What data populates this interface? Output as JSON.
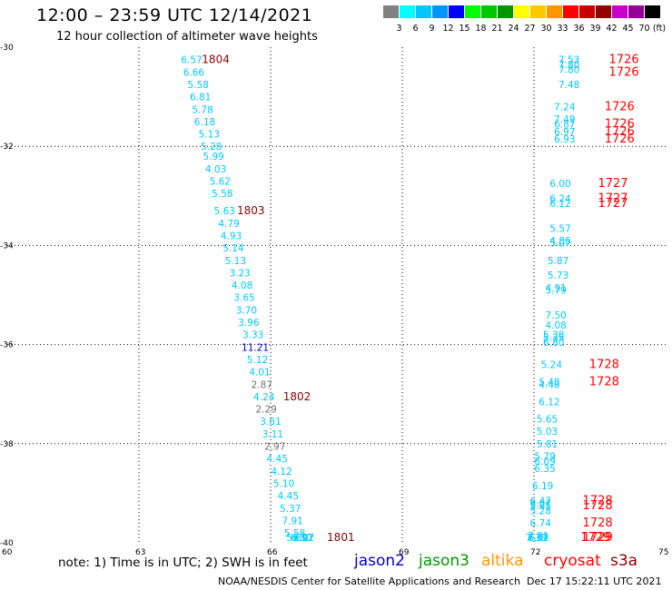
{
  "header": {
    "title": "12:00 – 23:59 UTC 12/14/2021",
    "subtitle": "12 hour collection of altimeter wave heights"
  },
  "legend": {
    "bins": [
      {
        "label": "",
        "color": "#808080"
      },
      {
        "label": "3",
        "color": "#00ffff"
      },
      {
        "label": "6",
        "color": "#00c8ff"
      },
      {
        "label": "9",
        "color": "#0096ff"
      },
      {
        "label": "12",
        "color": "#0000ff"
      },
      {
        "label": "15",
        "color": "#00ff00"
      },
      {
        "label": "18",
        "color": "#00c800"
      },
      {
        "label": "21",
        "color": "#009600"
      },
      {
        "label": "24",
        "color": "#ffff00"
      },
      {
        "label": "27",
        "color": "#ffc800"
      },
      {
        "label": "30",
        "color": "#ff9600"
      },
      {
        "label": "33",
        "color": "#ff0000"
      },
      {
        "label": "36",
        "color": "#c80000"
      },
      {
        "label": "39",
        "color": "#960000"
      },
      {
        "label": "42",
        "color": "#c800c8"
      },
      {
        "label": "45",
        "color": "#960096"
      },
      {
        "label": "70",
        "color": "#000000"
      }
    ],
    "unit": "(ft)"
  },
  "map": {
    "lon_range": [
      60,
      75
    ],
    "lat_range": [
      -40,
      -30
    ],
    "lon_ticks": [
      "60",
      "63",
      "66",
      "69",
      "72",
      "75"
    ],
    "lat_ticks": [
      "-30",
      "-32",
      "-34",
      "-36",
      "-38",
      "-40"
    ],
    "grid": true,
    "colors": {
      "light_cyan": "#00c8ff",
      "deep_blue": "#0000c8",
      "gray": "#707070",
      "dark_red": "#8b0000",
      "red": "#ff0000"
    }
  },
  "chart_data": {
    "type": "scatter",
    "xlabel": "",
    "ylabel": "",
    "xlim": [
      60,
      75
    ],
    "ylim": [
      -40,
      -30
    ],
    "grid": true,
    "track1": [
      {
        "lon": 64.2,
        "lat": -30.25,
        "v": "6.57",
        "c": "light_cyan"
      },
      {
        "lon": 64.25,
        "lat": -30.5,
        "v": "6.66",
        "c": "light_cyan"
      },
      {
        "lon": 64.35,
        "lat": -30.75,
        "v": "5.58",
        "c": "light_cyan"
      },
      {
        "lon": 64.4,
        "lat": -31.0,
        "v": "6.81",
        "c": "light_cyan"
      },
      {
        "lon": 64.45,
        "lat": -31.25,
        "v": "5.78",
        "c": "light_cyan"
      },
      {
        "lon": 64.5,
        "lat": -31.5,
        "v": "6.18",
        "c": "light_cyan"
      },
      {
        "lon": 64.6,
        "lat": -31.75,
        "v": "5.13",
        "c": "light_cyan"
      },
      {
        "lon": 64.65,
        "lat": -32.0,
        "v": "5.28",
        "c": "light_cyan"
      },
      {
        "lon": 64.7,
        "lat": -32.2,
        "v": "5.99",
        "c": "light_cyan"
      },
      {
        "lon": 64.75,
        "lat": -32.45,
        "v": "4.03",
        "c": "light_cyan"
      },
      {
        "lon": 64.85,
        "lat": -32.7,
        "v": "5.62",
        "c": "light_cyan"
      },
      {
        "lon": 64.9,
        "lat": -32.95,
        "v": "5.58",
        "c": "light_cyan"
      },
      {
        "lon": 64.95,
        "lat": -33.3,
        "v": "5.63",
        "c": "light_cyan"
      },
      {
        "lon": 65.05,
        "lat": -33.55,
        "v": "4.79",
        "c": "light_cyan"
      },
      {
        "lon": 65.1,
        "lat": -33.8,
        "v": "4.93",
        "c": "light_cyan"
      },
      {
        "lon": 65.15,
        "lat": -34.05,
        "v": "5.14",
        "c": "light_cyan"
      },
      {
        "lon": 65.2,
        "lat": -34.3,
        "v": "5.13",
        "c": "light_cyan"
      },
      {
        "lon": 65.3,
        "lat": -34.55,
        "v": "3.23",
        "c": "light_cyan"
      },
      {
        "lon": 65.35,
        "lat": -34.8,
        "v": "4.08",
        "c": "light_cyan"
      },
      {
        "lon": 65.4,
        "lat": -35.05,
        "v": "3.65",
        "c": "light_cyan"
      },
      {
        "lon": 65.45,
        "lat": -35.3,
        "v": "3.70",
        "c": "light_cyan"
      },
      {
        "lon": 65.5,
        "lat": -35.55,
        "v": "3.96",
        "c": "light_cyan"
      },
      {
        "lon": 65.6,
        "lat": -35.8,
        "v": "3.33",
        "c": "light_cyan"
      },
      {
        "lon": 65.65,
        "lat": -36.05,
        "v": "11.21",
        "c": "deep_blue"
      },
      {
        "lon": 65.7,
        "lat": -36.3,
        "v": "5.12",
        "c": "light_cyan"
      },
      {
        "lon": 65.75,
        "lat": -36.55,
        "v": "4.01",
        "c": "light_cyan"
      },
      {
        "lon": 65.8,
        "lat": -36.8,
        "v": "2.87",
        "c": "gray"
      },
      {
        "lon": 65.85,
        "lat": -37.05,
        "v": "4.24",
        "c": "light_cyan"
      },
      {
        "lon": 65.9,
        "lat": -37.3,
        "v": "2.29",
        "c": "gray"
      },
      {
        "lon": 66.0,
        "lat": -37.55,
        "v": "3.61",
        "c": "light_cyan"
      },
      {
        "lon": 66.05,
        "lat": -37.8,
        "v": "3.11",
        "c": "light_cyan"
      },
      {
        "lon": 66.1,
        "lat": -38.05,
        "v": "2.97",
        "c": "gray"
      },
      {
        "lon": 66.15,
        "lat": -38.3,
        "v": "4.45",
        "c": "light_cyan"
      },
      {
        "lon": 66.25,
        "lat": -38.55,
        "v": "4.12",
        "c": "light_cyan"
      },
      {
        "lon": 66.3,
        "lat": -38.8,
        "v": "5.10",
        "c": "light_cyan"
      },
      {
        "lon": 66.4,
        "lat": -39.05,
        "v": "4.45",
        "c": "light_cyan"
      },
      {
        "lon": 66.45,
        "lat": -39.3,
        "v": "5.37",
        "c": "light_cyan"
      },
      {
        "lon": 66.5,
        "lat": -39.55,
        "v": "7.91",
        "c": "light_cyan"
      },
      {
        "lon": 66.55,
        "lat": -39.8,
        "v": "5.58",
        "c": "light_cyan"
      },
      {
        "lon": 66.6,
        "lat": -40.1,
        "v": "5.69",
        "c": "light_cyan"
      },
      {
        "lon": 66.7,
        "lat": -40.35,
        "v": "6.30",
        "c": "light_cyan"
      },
      {
        "lon": 66.75,
        "lat": -40.6,
        "v": "6.07",
        "c": "light_cyan"
      },
      {
        "lon": 66.75,
        "lat": -40.65,
        "v": "7.22",
        "c": "light_cyan"
      }
    ],
    "track1_times": [
      {
        "lon": 64.75,
        "lat": -30.25,
        "t": "1804"
      },
      {
        "lon": 65.55,
        "lat": -33.3,
        "t": "1803"
      },
      {
        "lon": 66.6,
        "lat": -37.05,
        "t": "1802"
      },
      {
        "lon": 67.6,
        "lat": -40.65,
        "t": "1801"
      }
    ],
    "track2": [
      {
        "lon": 72.8,
        "lat": -30.25,
        "v": "7.53",
        "c": "light_cyan"
      },
      {
        "lon": 72.8,
        "lat": -30.35,
        "v": "7.80",
        "c": "light_cyan"
      },
      {
        "lon": 72.8,
        "lat": -30.45,
        "v": "7.80",
        "c": "light_cyan"
      },
      {
        "lon": 72.8,
        "lat": -30.75,
        "v": "7.48",
        "c": "light_cyan"
      },
      {
        "lon": 72.7,
        "lat": -31.2,
        "v": "7.24",
        "c": "light_cyan"
      },
      {
        "lon": 72.7,
        "lat": -31.45,
        "v": "7.49",
        "c": "light_cyan"
      },
      {
        "lon": 72.7,
        "lat": -31.55,
        "v": "6.87",
        "c": "light_cyan"
      },
      {
        "lon": 72.7,
        "lat": -31.7,
        "v": "6.97",
        "c": "light_cyan"
      },
      {
        "lon": 72.7,
        "lat": -31.85,
        "v": "6.93",
        "c": "light_cyan"
      },
      {
        "lon": 72.6,
        "lat": -32.75,
        "v": "6.00",
        "c": "light_cyan"
      },
      {
        "lon": 72.6,
        "lat": -33.05,
        "v": "6.24",
        "c": "light_cyan"
      },
      {
        "lon": 72.6,
        "lat": -33.15,
        "v": "6.12",
        "c": "light_cyan"
      },
      {
        "lon": 72.6,
        "lat": -33.65,
        "v": "5.57",
        "c": "light_cyan"
      },
      {
        "lon": 72.6,
        "lat": -33.9,
        "v": "4.86",
        "c": "light_cyan"
      },
      {
        "lon": 72.6,
        "lat": -33.95,
        "v": "5.07",
        "c": "light_cyan"
      },
      {
        "lon": 72.55,
        "lat": -34.3,
        "v": "5.87",
        "c": "light_cyan"
      },
      {
        "lon": 72.55,
        "lat": -34.6,
        "v": "5.73",
        "c": "light_cyan"
      },
      {
        "lon": 72.5,
        "lat": -34.85,
        "v": "4.91",
        "c": "light_cyan"
      },
      {
        "lon": 72.5,
        "lat": -34.9,
        "v": "5.79",
        "c": "light_cyan"
      },
      {
        "lon": 72.5,
        "lat": -35.4,
        "v": "7.50",
        "c": "light_cyan"
      },
      {
        "lon": 72.5,
        "lat": -35.6,
        "v": "4.08",
        "c": "light_cyan"
      },
      {
        "lon": 72.45,
        "lat": -35.8,
        "v": "5.38",
        "c": "light_cyan"
      },
      {
        "lon": 72.45,
        "lat": -35.85,
        "v": "5.35",
        "c": "light_cyan"
      },
      {
        "lon": 72.45,
        "lat": -35.95,
        "v": "6.80",
        "c": "light_cyan"
      },
      {
        "lon": 72.4,
        "lat": -36.4,
        "v": "5.24",
        "c": "light_cyan"
      },
      {
        "lon": 72.35,
        "lat": -36.75,
        "v": "5.48",
        "c": "light_cyan"
      },
      {
        "lon": 72.35,
        "lat": -36.8,
        "v": "4.48",
        "c": "light_cyan"
      },
      {
        "lon": 72.35,
        "lat": -37.15,
        "v": "6.12",
        "c": "light_cyan"
      },
      {
        "lon": 72.3,
        "lat": -37.5,
        "v": "5.65",
        "c": "light_cyan"
      },
      {
        "lon": 72.3,
        "lat": -37.75,
        "v": "5.03",
        "c": "light_cyan"
      },
      {
        "lon": 72.3,
        "lat": -38.0,
        "v": "5.81",
        "c": "light_cyan"
      },
      {
        "lon": 72.25,
        "lat": -38.25,
        "v": "5.79",
        "c": "light_cyan"
      },
      {
        "lon": 72.25,
        "lat": -38.35,
        "v": "6.09",
        "c": "light_cyan"
      },
      {
        "lon": 72.25,
        "lat": -38.5,
        "v": "6.35",
        "c": "light_cyan"
      },
      {
        "lon": 72.2,
        "lat": -38.85,
        "v": "6.19",
        "c": "light_cyan"
      },
      {
        "lon": 72.15,
        "lat": -39.15,
        "v": "6.47",
        "c": "light_cyan"
      },
      {
        "lon": 72.15,
        "lat": -39.2,
        "v": "6.07",
        "c": "light_cyan"
      },
      {
        "lon": 72.15,
        "lat": -39.25,
        "v": "5.85",
        "c": "light_cyan"
      },
      {
        "lon": 72.15,
        "lat": -39.35,
        "v": "5.28",
        "c": "light_cyan"
      },
      {
        "lon": 72.15,
        "lat": -39.6,
        "v": "6.74",
        "c": "light_cyan"
      },
      {
        "lon": 72.1,
        "lat": -39.85,
        "v": "7.21",
        "c": "light_cyan"
      },
      {
        "lon": 72.1,
        "lat": -40.1,
        "v": "6.52",
        "c": "light_cyan"
      },
      {
        "lon": 72.1,
        "lat": -40.2,
        "v": "7.52",
        "c": "light_cyan"
      },
      {
        "lon": 72.05,
        "lat": -40.5,
        "v": "7.38",
        "c": "light_cyan"
      }
    ],
    "track2_times": [
      {
        "lon": 74.05,
        "lat": -30.25,
        "t": "1726"
      },
      {
        "lon": 74.05,
        "lat": -30.5,
        "t": "1726"
      },
      {
        "lon": 73.95,
        "lat": -31.2,
        "t": "1726"
      },
      {
        "lon": 73.95,
        "lat": -31.55,
        "t": "1726"
      },
      {
        "lon": 73.95,
        "lat": -31.7,
        "t": "1726"
      },
      {
        "lon": 73.95,
        "lat": -31.85,
        "t": "1726"
      },
      {
        "lon": 73.8,
        "lat": -32.75,
        "t": "1727"
      },
      {
        "lon": 73.8,
        "lat": -33.05,
        "t": "1727"
      },
      {
        "lon": 73.8,
        "lat": -33.15,
        "t": "1727"
      },
      {
        "lon": 73.6,
        "lat": -36.4,
        "t": "1728"
      },
      {
        "lon": 73.6,
        "lat": -36.75,
        "t": "1728"
      },
      {
        "lon": 73.45,
        "lat": -39.15,
        "t": "1728"
      },
      {
        "lon": 73.45,
        "lat": -39.25,
        "t": "1728"
      },
      {
        "lon": 73.45,
        "lat": -39.6,
        "t": "1728"
      },
      {
        "lon": 73.45,
        "lat": -40.1,
        "t": "1729"
      },
      {
        "lon": 73.45,
        "lat": -40.2,
        "t": "1729"
      },
      {
        "lon": 73.4,
        "lat": -40.5,
        "t": "1729"
      }
    ]
  },
  "footer": {
    "note": "note: 1) Time is in UTC; 2) SWH is in feet",
    "satellites": [
      {
        "name": "jason2",
        "color": "#0000c8"
      },
      {
        "name": "jason3",
        "color": "#009600"
      },
      {
        "name": "altika",
        "color": "#ff9600"
      },
      {
        "name": "cryosat",
        "color": "#ff0000"
      },
      {
        "name": "s3a",
        "color": "#8b0000"
      }
    ],
    "credit": "NOAA/NESDIS Center for Satellite Applications and Research",
    "timestamp": "Dec 17 15:22:11 UTC 2021"
  }
}
